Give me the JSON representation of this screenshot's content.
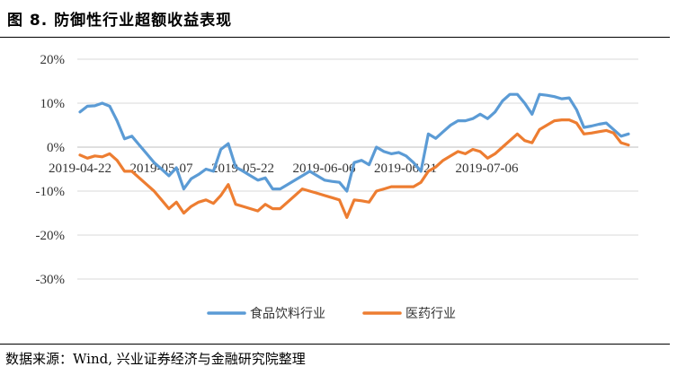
{
  "figure": {
    "title": "图 8. 防御性行业超额收益表现",
    "source": "数据来源：Wind, 兴业证券经济与金融研究院整理"
  },
  "chart_data": {
    "type": "line",
    "yticks": [
      "20%",
      "10%",
      "0%",
      "-10%",
      "-20%",
      "-30%"
    ],
    "ylim": [
      -30,
      20
    ],
    "grid": "horizontal",
    "legend_position": "bottom",
    "xlim": [
      0,
      60
    ],
    "xtick_labels": [
      "2019-04-22",
      "2019-05-07",
      "2019-05-22",
      "2019-06-06",
      "2019-06-21",
      "2019-07-06"
    ],
    "xtick_positions": [
      0,
      10,
      20,
      30,
      40,
      50
    ],
    "series": [
      {
        "name": "食品饮料行业",
        "color": "#5B9BD5",
        "values": [
          8.0,
          9.3,
          9.4,
          10.0,
          9.3,
          6.0,
          1.9,
          2.5,
          0.5,
          -1.5,
          -3.5,
          -5.0,
          -6.5,
          -4.7,
          -9.5,
          -7.2,
          -6.2,
          -5.0,
          -5.5,
          -0.5,
          0.8,
          -4.5,
          -5.5,
          -6.5,
          -7.5,
          -7.0,
          -9.5,
          -9.5,
          -8.5,
          -7.5,
          -6.5,
          -5.5,
          -6.5,
          -7.5,
          -7.8,
          -8.0,
          -10.0,
          -3.5,
          -3.0,
          -4.0,
          0.0,
          -1.0,
          -1.5,
          -1.2,
          -2.0,
          -3.5,
          -5.5,
          3.0,
          2.0,
          3.5,
          5.0,
          6.0,
          6.0,
          6.5,
          7.5,
          6.5,
          8.0,
          10.5,
          12.0,
          12.0,
          10.0,
          7.5,
          12.0,
          11.8,
          11.5,
          11.0,
          11.2,
          8.5,
          4.5,
          4.8,
          5.2,
          5.5,
          4.0,
          2.5,
          3.0
        ]
      },
      {
        "name": "医药行业",
        "color": "#ED7D31",
        "values": [
          -1.8,
          -2.5,
          -2.0,
          -2.2,
          -1.5,
          -3.0,
          -5.5,
          -5.5,
          -7.0,
          -8.5,
          -10.0,
          -12.0,
          -14.0,
          -12.5,
          -15.0,
          -13.5,
          -12.5,
          -12.0,
          -12.8,
          -11.0,
          -8.5,
          -13.0,
          -13.5,
          -14.0,
          -14.5,
          -13.0,
          -14.0,
          -14.0,
          -12.5,
          -11.0,
          -9.5,
          -10.0,
          -10.5,
          -11.0,
          -11.5,
          -12.0,
          -16.0,
          -12.0,
          -12.2,
          -12.5,
          -10.0,
          -9.5,
          -9.0,
          -9.0,
          -9.0,
          -9.0,
          -8.0,
          -5.5,
          -4.5,
          -3.0,
          -2.0,
          -1.0,
          -1.5,
          -0.5,
          -1.0,
          -2.5,
          -1.5,
          0.0,
          1.5,
          3.0,
          1.5,
          1.0,
          4.0,
          5.0,
          6.0,
          6.2,
          6.2,
          5.5,
          3.0,
          3.2,
          3.5,
          3.8,
          3.2,
          1.0,
          0.5
        ]
      }
    ]
  }
}
